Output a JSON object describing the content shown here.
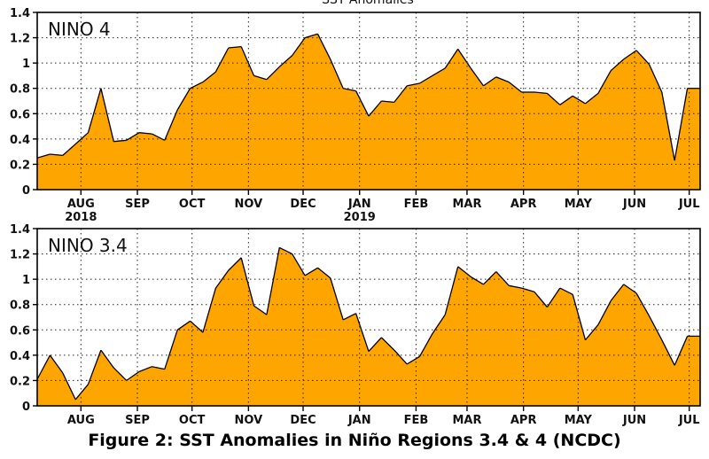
{
  "caption": "Figure 2: SST Anomalies in Niño Regions 3.4 & 4 (NCDC)",
  "top_title": "SST Anomalies",
  "chart_data": [
    {
      "type": "area",
      "title": "NINO 4",
      "fill_color": "#FFA500",
      "line_color": "#000000",
      "ylim": [
        0,
        1.4
      ],
      "yticks": [
        "0",
        "0.2",
        "0.4",
        "0.6",
        "0.8",
        "1",
        "1.2",
        "1.4"
      ],
      "xticks": [
        "AUG",
        "SEP",
        "OCT",
        "NOV",
        "DEC",
        "JAN",
        "FEB",
        "MAR",
        "APR",
        "MAY",
        "JUN",
        "JUL"
      ],
      "year_labels": [
        {
          "label": "2018",
          "under": "AUG"
        },
        {
          "label": "2019",
          "under": "JAN"
        }
      ],
      "grid": "dotted",
      "x": [
        "2018-07-08",
        "2018-07-15",
        "2018-07-22",
        "2018-07-29",
        "2018-08-05",
        "2018-08-12",
        "2018-08-19",
        "2018-08-26",
        "2018-09-02",
        "2018-09-09",
        "2018-09-16",
        "2018-09-23",
        "2018-09-30",
        "2018-10-07",
        "2018-10-14",
        "2018-10-21",
        "2018-10-28",
        "2018-11-04",
        "2018-11-11",
        "2018-11-18",
        "2018-11-25",
        "2018-12-02",
        "2018-12-09",
        "2018-12-16",
        "2018-12-23",
        "2018-12-30",
        "2019-01-06",
        "2019-01-13",
        "2019-01-20",
        "2019-01-27",
        "2019-02-03",
        "2019-02-10",
        "2019-02-17",
        "2019-02-24",
        "2019-03-03",
        "2019-03-10",
        "2019-03-17",
        "2019-03-24",
        "2019-03-31",
        "2019-04-07",
        "2019-04-14",
        "2019-04-21",
        "2019-04-28",
        "2019-05-05",
        "2019-05-12",
        "2019-05-19",
        "2019-05-26",
        "2019-06-02",
        "2019-06-09",
        "2019-06-16",
        "2019-06-23",
        "2019-06-30",
        "2019-07-07"
      ],
      "values": [
        0.25,
        0.28,
        0.27,
        0.36,
        0.45,
        0.8,
        0.38,
        0.39,
        0.45,
        0.44,
        0.39,
        0.63,
        0.8,
        0.85,
        0.93,
        1.12,
        1.13,
        0.9,
        0.87,
        0.97,
        1.06,
        1.2,
        1.23,
        1.03,
        0.8,
        0.78,
        0.58,
        0.7,
        0.69,
        0.82,
        0.84,
        0.9,
        0.96,
        1.11,
        0.96,
        0.82,
        0.89,
        0.85,
        0.77,
        0.77,
        0.76,
        0.67,
        0.74,
        0.68,
        0.76,
        0.94,
        1.03,
        1.1,
        0.99,
        0.77,
        0.23,
        0.8,
        0.8
      ]
    },
    {
      "type": "area",
      "title": "NINO 3.4",
      "fill_color": "#FFA500",
      "line_color": "#000000",
      "ylim": [
        0,
        1.4
      ],
      "yticks": [
        "0",
        "0.2",
        "0.4",
        "0.6",
        "0.8",
        "1",
        "1.2",
        "1.4"
      ],
      "xticks": [
        "AUG",
        "SEP",
        "OCT",
        "NOV",
        "DEC",
        "JAN",
        "FEB",
        "MAR",
        "APR",
        "MAY",
        "JUN",
        "JUL"
      ],
      "grid": "dotted",
      "x": [
        "2018-07-08",
        "2018-07-15",
        "2018-07-22",
        "2018-07-29",
        "2018-08-05",
        "2018-08-12",
        "2018-08-19",
        "2018-08-26",
        "2018-09-02",
        "2018-09-09",
        "2018-09-16",
        "2018-09-23",
        "2018-09-30",
        "2018-10-07",
        "2018-10-14",
        "2018-10-21",
        "2018-10-28",
        "2018-11-04",
        "2018-11-11",
        "2018-11-18",
        "2018-11-25",
        "2018-12-02",
        "2018-12-09",
        "2018-12-16",
        "2018-12-23",
        "2018-12-30",
        "2019-01-06",
        "2019-01-13",
        "2019-01-20",
        "2019-01-27",
        "2019-02-03",
        "2019-02-10",
        "2019-02-17",
        "2019-02-24",
        "2019-03-03",
        "2019-03-10",
        "2019-03-17",
        "2019-03-24",
        "2019-03-31",
        "2019-04-07",
        "2019-04-14",
        "2019-04-21",
        "2019-04-28",
        "2019-05-05",
        "2019-05-12",
        "2019-05-19",
        "2019-05-26",
        "2019-06-02",
        "2019-06-09",
        "2019-06-16",
        "2019-06-23",
        "2019-06-30",
        "2019-07-07"
      ],
      "values": [
        0.21,
        0.4,
        0.26,
        0.05,
        0.17,
        0.44,
        0.3,
        0.2,
        0.27,
        0.31,
        0.29,
        0.6,
        0.67,
        0.58,
        0.93,
        1.07,
        1.17,
        0.79,
        0.72,
        1.25,
        1.2,
        1.03,
        1.09,
        1.01,
        0.68,
        0.73,
        0.43,
        0.54,
        0.44,
        0.33,
        0.39,
        0.57,
        0.72,
        1.1,
        1.02,
        0.96,
        1.06,
        0.95,
        0.93,
        0.9,
        0.78,
        0.93,
        0.88,
        0.52,
        0.64,
        0.83,
        0.96,
        0.89,
        0.71,
        0.52,
        0.32,
        0.55,
        0.55
      ]
    }
  ]
}
